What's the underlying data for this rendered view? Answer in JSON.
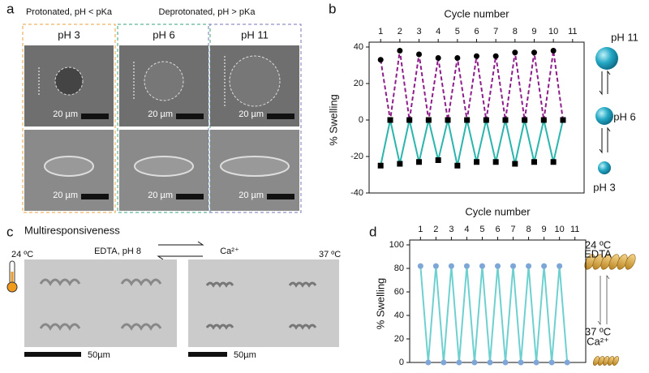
{
  "panel_a": {
    "letter": "a",
    "protonated": "Protonated, pH < pKa",
    "deprotonated": "Deprotonated, pH > pKa",
    "columns": [
      {
        "title": "pH 3",
        "scale_top": "20 µm",
        "scale_bottom": "20 µm",
        "color": "#e8a13c"
      },
      {
        "title": "pH 6",
        "scale_top": "20 µm",
        "scale_bottom": "20 µm",
        "color": "#3aa37e"
      },
      {
        "title": "pH 11",
        "scale_top": "20 µm",
        "scale_bottom": "20 µm",
        "color": "#7474b4"
      }
    ]
  },
  "panel_c": {
    "letter": "c",
    "title": "Multiresponsiveness",
    "left_label": "EDTA, pH 8",
    "right_label": "Ca²⁺",
    "left_temp": "24 ºC",
    "right_temp": "37 ºC",
    "scale_left": "50µm",
    "scale_right": "50µm"
  },
  "chart_data": [
    {
      "type": "line",
      "letter": "b",
      "xlabel": "Cycle number",
      "ylabel": "% Swelling",
      "x": [
        1,
        1.5,
        2,
        2.5,
        3,
        3.5,
        4,
        4.5,
        5,
        5.5,
        6,
        6.5,
        7,
        7.5,
        8,
        8.5,
        9,
        9.5,
        10,
        10.5
      ],
      "xlim": [
        0.4,
        11.6
      ],
      "xticks": [
        1,
        2,
        3,
        4,
        5,
        6,
        7,
        8,
        9,
        10,
        11
      ],
      "ylim": [
        -40,
        40
      ],
      "yticks": [
        -40,
        -20,
        0,
        20,
        40
      ],
      "series": [
        {
          "color": "#8e1d8c",
          "dashed": true,
          "marker": "circle",
          "marker_color": "#000000",
          "values": [
            33,
            0,
            38,
            0,
            36,
            0,
            34,
            0,
            34,
            0,
            35,
            0,
            35,
            0,
            37,
            0,
            37,
            0,
            38,
            0
          ]
        },
        {
          "color": "#2bb5ad",
          "dashed": false,
          "marker": "square",
          "marker_color": "#000000",
          "values": [
            -25,
            0,
            -24,
            0,
            -23,
            0,
            -22,
            0,
            -25,
            0,
            -23,
            0,
            -23,
            0,
            -24,
            0,
            -23,
            0,
            -23,
            0
          ]
        }
      ],
      "side_labels": [
        "pH 11",
        "pH 6",
        "pH 3"
      ]
    },
    {
      "type": "line",
      "letter": "d",
      "xlabel": "Cycle number",
      "ylabel": "% Swelling",
      "x": [
        1,
        1.5,
        2,
        2.5,
        3,
        3.5,
        4,
        4.5,
        5,
        5.5,
        6,
        6.5,
        7,
        7.5,
        8,
        8.5,
        9,
        9.5,
        10,
        10.5
      ],
      "xlim": [
        0.3,
        11.7
      ],
      "xticks": [
        1,
        2,
        3,
        4,
        5,
        6,
        7,
        8,
        9,
        10,
        11
      ],
      "ylim": [
        0,
        100
      ],
      "yticks": [
        0,
        20,
        40,
        60,
        80,
        100
      ],
      "series": [
        {
          "color": "#6fd0d0",
          "dashed": false,
          "marker": "circle",
          "marker_color": "#7ea7d8",
          "values": [
            82,
            0,
            82,
            0,
            82,
            0,
            82,
            0,
            82,
            0,
            82,
            0,
            82,
            0,
            82,
            0,
            82,
            0,
            82,
            0
          ]
        }
      ],
      "side_labels": [
        "24 ºC",
        "EDTA",
        "37 ºC",
        "Ca²⁺"
      ]
    }
  ]
}
